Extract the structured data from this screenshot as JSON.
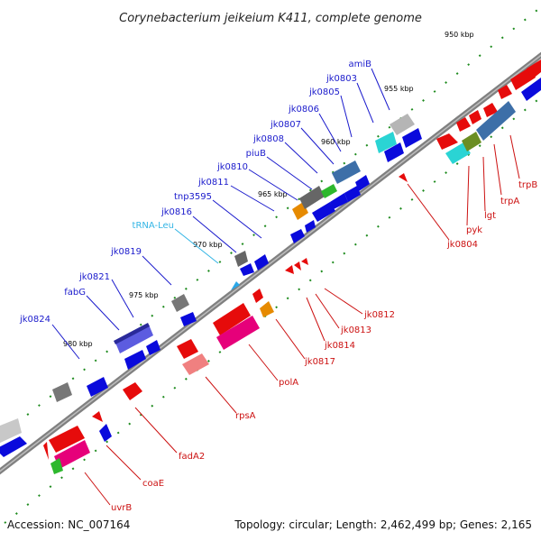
{
  "title": "Corynebacterium jeikeium K411, complete genome",
  "footer": {
    "accession": "Accession: NC_007164",
    "stats": "Topology: circular; Length: 2,462,499 bp; Genes: 2,165"
  },
  "ticks": [
    "950 kbp",
    "955 kbp",
    "960 kbp",
    "965 kbp",
    "970 kbp",
    "975 kbp",
    "980 kbp"
  ],
  "colors": {
    "forward_label": "#1a1acc",
    "reverse_label": "#cc1111",
    "trna_label": "#33b5e5",
    "forward_gene": "#0a0adc",
    "reverse_gene": "#e60b0b",
    "backbone": "#808080"
  },
  "forward_labels": [
    "amiB",
    "jk0803",
    "jk0805",
    "jk0806",
    "jk0807",
    "jk0808",
    "piuB",
    "jk0810",
    "jk0811",
    "tnp3595",
    "jk0816",
    "tRNA-Leu",
    "jk0819",
    "jk0821",
    "fabG",
    "jk0824"
  ],
  "reverse_labels": [
    "trpB",
    "trpA",
    "lgt",
    "pyk",
    "jk0804",
    "jk0812",
    "jk0813",
    "jk0814",
    "jk0817",
    "polA",
    "rpsA",
    "fadA2",
    "coaE",
    "uvrB"
  ]
}
